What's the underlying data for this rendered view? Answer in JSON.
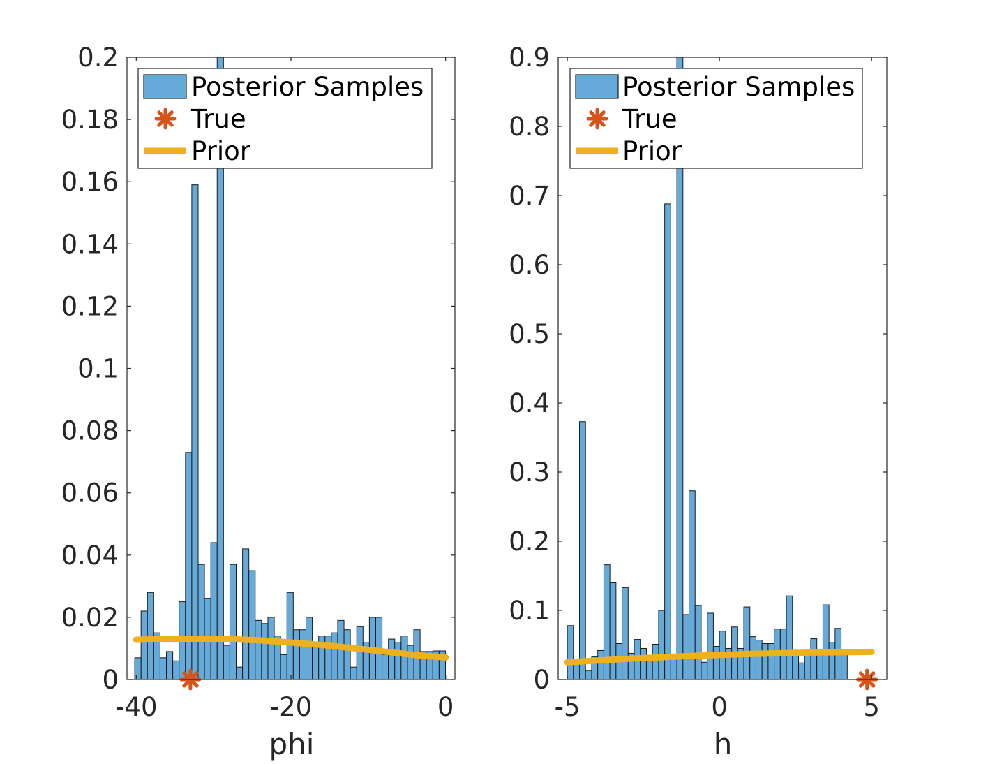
{
  "colors": {
    "bar_fill": "#66aad9",
    "bar_edge": "#1a1a1a",
    "prior": "#edb120",
    "true_marker": "#d95319",
    "axis": "#262626"
  },
  "legend": {
    "entries": [
      "Posterior Samples",
      "True",
      "Prior"
    ],
    "placement": "top"
  },
  "chart_data": [
    {
      "type": "bar",
      "subtype": "histogram",
      "xlabel": "phi",
      "ylabel": "",
      "xlim": [
        -41.2,
        1.2
      ],
      "ylim": [
        0,
        0.2
      ],
      "xticks": [
        -40,
        -20,
        0
      ],
      "xtick_labels": [
        "-40",
        "-20",
        "0"
      ],
      "yticks": [
        0,
        0.02,
        0.04,
        0.06,
        0.08,
        0.1,
        0.12,
        0.14,
        0.16,
        0.18,
        0.2
      ],
      "ytick_labels": [
        "0",
        "0.02",
        "0.04",
        "0.06",
        "0.08",
        "0.1",
        "0.12",
        "0.14",
        "0.16",
        "0.18",
        "0.2"
      ],
      "bin_start": -40.2,
      "bin_width": 0.82,
      "values": [
        0.007,
        0.022,
        0.028,
        0.015,
        0.007,
        0.009,
        0.006,
        0.025,
        0.073,
        0.159,
        0.037,
        0.026,
        0.044,
        0.2,
        0.011,
        0.037,
        0.004,
        0.042,
        0.035,
        0.019,
        0.018,
        0.02,
        0.014,
        0.008,
        0.028,
        0.016,
        0.016,
        0.02,
        0.011,
        0.014,
        0.014,
        0.015,
        0.019,
        0.016,
        0.004,
        0.017,
        0.012,
        0.02,
        0.02,
        0.008,
        0.013,
        0.012,
        0.014,
        0.011,
        0.016,
        0.009,
        0.009,
        0.0092,
        0.0092
      ],
      "prior": {
        "x": [
          -40,
          -36,
          -32,
          -28,
          -24,
          -20,
          -16,
          -12,
          -8,
          -4,
          0
        ],
        "y": [
          0.0128,
          0.013,
          0.0131,
          0.013,
          0.0126,
          0.0119,
          0.0111,
          0.0101,
          0.009,
          0.0079,
          0.0071
        ]
      },
      "true": {
        "x": -33,
        "y": 0
      }
    },
    {
      "type": "bar",
      "subtype": "histogram",
      "xlabel": "h",
      "ylabel": "",
      "xlim": [
        -5.3,
        5.5
      ],
      "ylim": [
        0,
        0.9
      ],
      "xticks": [
        -5,
        0,
        5
      ],
      "xtick_labels": [
        "-5",
        "0",
        "5"
      ],
      "yticks": [
        0,
        0.1,
        0.2,
        0.3,
        0.4,
        0.5,
        0.6,
        0.7,
        0.8,
        0.9
      ],
      "ytick_labels": [
        "0",
        "0.1",
        "0.2",
        "0.3",
        "0.4",
        "0.5",
        "0.6",
        "0.7",
        "0.8",
        "0.9"
      ],
      "bin_start": -5.0,
      "bin_width": 0.2,
      "values": [
        0.078,
        0.027,
        0.373,
        0.013,
        0.033,
        0.042,
        0.166,
        0.14,
        0.052,
        0.133,
        0.038,
        0.058,
        0.045,
        0.035,
        0.051,
        0.1,
        0.688,
        0.035,
        0.9,
        0.094,
        0.273,
        0.107,
        0.025,
        0.096,
        0.048,
        0.07,
        0.045,
        0.076,
        0.045,
        0.105,
        0.062,
        0.057,
        0.052,
        0.052,
        0.073,
        0.073,
        0.121,
        0.036,
        0.024,
        0.036,
        0.059,
        0.036,
        0.108,
        0.054,
        0.074,
        0.04
      ],
      "prior": {
        "x": [
          -5,
          -3,
          -1,
          1,
          3,
          5
        ],
        "y": [
          0.025,
          0.03,
          0.034,
          0.037,
          0.039,
          0.04
        ]
      },
      "true": {
        "x": 4.85,
        "y": 0
      }
    }
  ]
}
